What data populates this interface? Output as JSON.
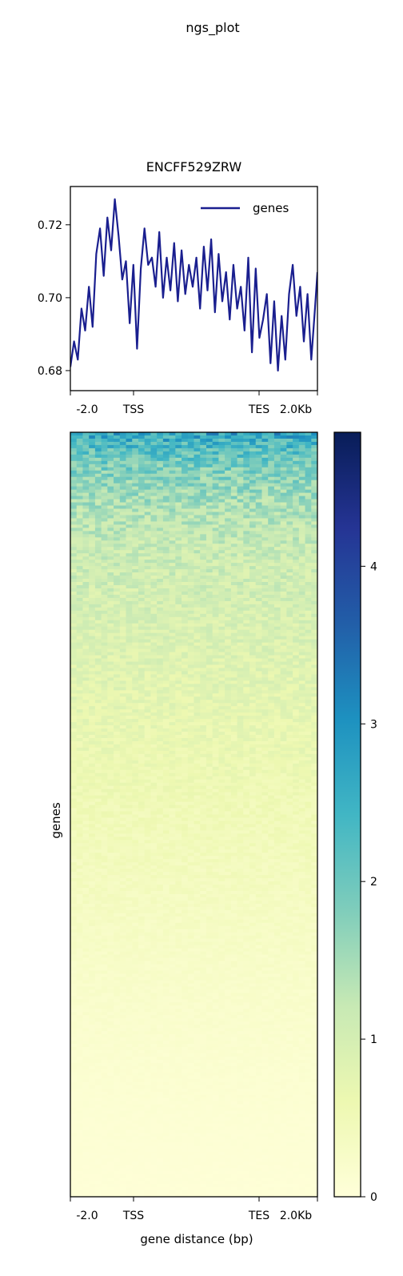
{
  "figure": {
    "suptitle": "ngs_plot"
  },
  "chart_data": [
    {
      "type": "line",
      "title": "ENCFF529ZRW",
      "xlabel": "",
      "ylabel": "",
      "x_ticklabels": [
        "-2.0",
        "TSS",
        "TES",
        "2.0Kb"
      ],
      "y_ticks": [
        0.68,
        0.7,
        0.72
      ],
      "y_ticklabels": [
        "0.68",
        "0.70",
        "0.72"
      ],
      "ylim": [
        0.6745,
        0.7305
      ],
      "legend": {
        "position": "top-right",
        "entries": [
          "genes"
        ]
      },
      "grid": false,
      "series": [
        {
          "name": "genes",
          "color": "#1a1f8f",
          "x_positions_fraction": [
            0.0,
            0.015,
            0.03,
            0.045,
            0.06,
            0.075,
            0.09,
            0.105,
            0.12,
            0.135,
            0.15,
            0.165,
            0.18,
            0.195,
            0.21,
            0.225,
            0.24,
            0.255,
            0.27,
            0.285,
            0.3,
            0.315,
            0.33,
            0.345,
            0.36,
            0.375,
            0.39,
            0.405,
            0.42,
            0.435,
            0.45,
            0.465,
            0.48,
            0.495,
            0.51,
            0.525,
            0.54,
            0.555,
            0.57,
            0.585,
            0.6,
            0.615,
            0.63,
            0.645,
            0.66,
            0.675,
            0.69,
            0.705,
            0.72,
            0.735,
            0.75,
            0.765,
            0.78,
            0.795,
            0.81,
            0.825,
            0.84,
            0.855,
            0.87,
            0.885,
            0.9,
            0.915,
            0.93,
            0.945,
            0.96,
            0.975,
            0.99,
            1.0
          ],
          "values": [
            0.681,
            0.688,
            0.683,
            0.697,
            0.691,
            0.703,
            0.692,
            0.712,
            0.719,
            0.706,
            0.722,
            0.713,
            0.727,
            0.717,
            0.705,
            0.71,
            0.693,
            0.709,
            0.686,
            0.708,
            0.719,
            0.709,
            0.711,
            0.703,
            0.718,
            0.7,
            0.711,
            0.702,
            0.715,
            0.699,
            0.713,
            0.701,
            0.709,
            0.703,
            0.711,
            0.697,
            0.714,
            0.702,
            0.716,
            0.696,
            0.712,
            0.699,
            0.707,
            0.694,
            0.709,
            0.697,
            0.703,
            0.691,
            0.711,
            0.685,
            0.708,
            0.689,
            0.694,
            0.701,
            0.682,
            0.699,
            0.68,
            0.695,
            0.683,
            0.701,
            0.709,
            0.695,
            0.703,
            0.688,
            0.701,
            0.683,
            0.697,
            0.707
          ]
        }
      ]
    },
    {
      "type": "heatmap",
      "title": "",
      "xlabel": "gene distance (bp)",
      "ylabel": "genes",
      "x_ticklabels": [
        "-2.0",
        "TSS",
        "TES",
        "2.0Kb"
      ],
      "colormap": "YlGnBu",
      "color_range": [
        0,
        4.85
      ],
      "colorbar_ticks": [
        0,
        1,
        2,
        3,
        4
      ],
      "colorbar_ticklabels": [
        "0",
        "1",
        "2",
        "3",
        "4"
      ],
      "rows_sorted_descending_by_mean": true,
      "row_mean_profile": {
        "row_fraction": [
          0.0,
          0.02,
          0.05,
          0.1,
          0.15,
          0.25,
          0.35,
          0.5,
          0.7,
          0.85,
          1.0
        ],
        "mean_value": [
          2.7,
          2.2,
          1.8,
          1.4,
          1.15,
          0.95,
          0.75,
          0.5,
          0.25,
          0.12,
          0.04
        ]
      }
    }
  ]
}
